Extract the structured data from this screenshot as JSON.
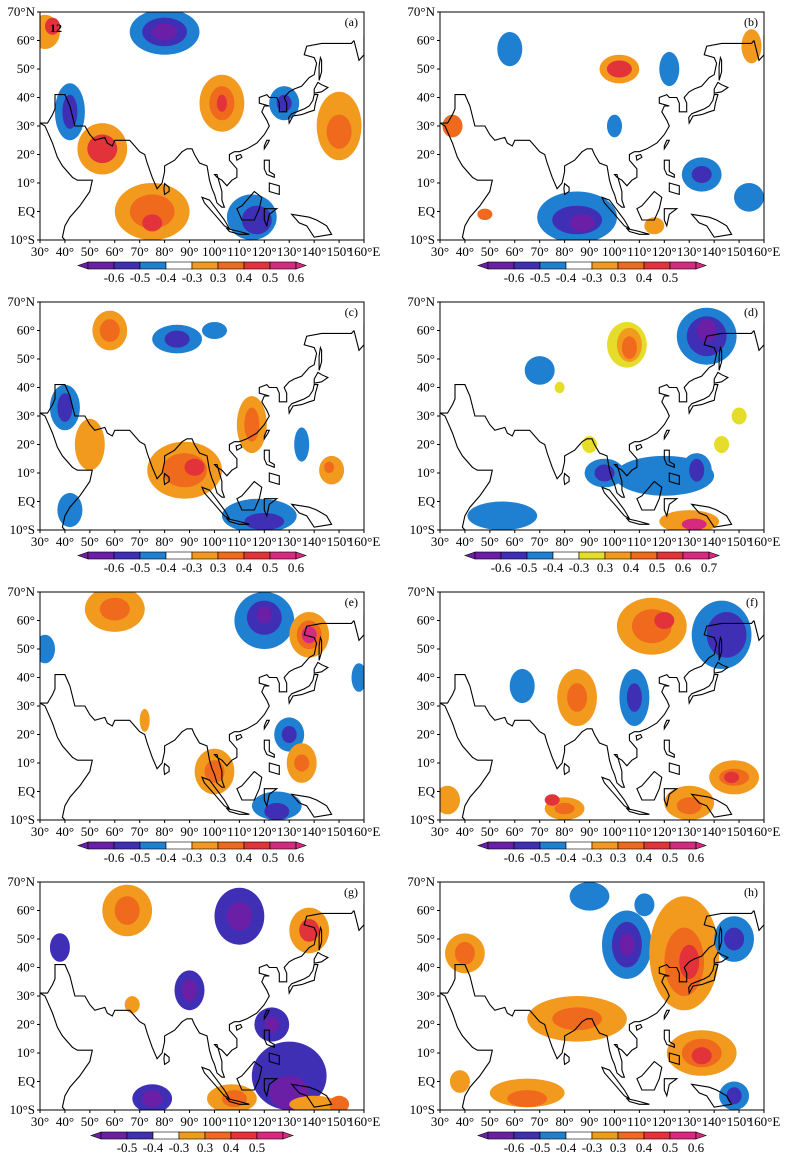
{
  "figure": {
    "lon_ticks": [
      "30°",
      "40°",
      "50°",
      "60°",
      "70°",
      "80°",
      "90°",
      "100°",
      "110°",
      "120°",
      "130°",
      "140°",
      "150°",
      "160°E"
    ],
    "lat_ticks": [
      "70°N",
      "60°",
      "50°",
      "40°",
      "30°",
      "20°",
      "10°",
      "EQ",
      "10°S"
    ],
    "panels": [
      {
        "id": "a",
        "label": "(a)",
        "map_number": "12",
        "colorbar": [
          "-0.6",
          "-0.5",
          "-0.4",
          "-0.3",
          "0.3",
          "0.4",
          "0.5",
          "0.6"
        ],
        "colors": [
          "#6a1fa6",
          "#3f2fb5",
          "#1f7fd0",
          "#ffffff",
          "#f29a1e",
          "#ef6a1c",
          "#e2323a",
          "#d62a80"
        ]
      },
      {
        "id": "b",
        "label": "(b)",
        "map_number": "",
        "colorbar": [
          "-0.6",
          "-0.5",
          "-0.4",
          "-0.3",
          "0.3",
          "0.4",
          "0.5"
        ],
        "colors": [
          "#6a1fa6",
          "#3f2fb5",
          "#1f7fd0",
          "#ffffff",
          "#f29a1e",
          "#ef6a1c",
          "#e2323a",
          "#d62a80"
        ]
      },
      {
        "id": "c",
        "label": "(c)",
        "map_number": "",
        "colorbar": [
          "-0.6",
          "-0.5",
          "-0.4",
          "-0.3",
          "0.3",
          "0.4",
          "0.5",
          "0.6"
        ],
        "colors": [
          "#6a1fa6",
          "#3f2fb5",
          "#1f7fd0",
          "#ffffff",
          "#f29a1e",
          "#ef6a1c",
          "#e2323a",
          "#d62a80"
        ]
      },
      {
        "id": "d",
        "label": "(d)",
        "map_number": "",
        "colorbar": [
          "-0.6",
          "-0.5",
          "-0.4",
          "-0.3",
          "0.3",
          "0.4",
          "0.5",
          "0.6",
          "0.7"
        ],
        "colors": [
          "#6a1fa6",
          "#3f2fb5",
          "#1f7fd0",
          "#ffffff",
          "#e6dc2a",
          "#f29a1e",
          "#ef6a1c",
          "#e2323a",
          "#d62a80"
        ]
      },
      {
        "id": "e",
        "label": "(e)",
        "map_number": "",
        "colorbar": [
          "-0.6",
          "-0.5",
          "-0.4",
          "-0.3",
          "0.3",
          "0.4",
          "0.5",
          "0.6"
        ],
        "colors": [
          "#6a1fa6",
          "#3f2fb5",
          "#1f7fd0",
          "#ffffff",
          "#f29a1e",
          "#ef6a1c",
          "#e2323a",
          "#d62a80"
        ]
      },
      {
        "id": "f",
        "label": "(f)",
        "map_number": "",
        "colorbar": [
          "-0.6",
          "-0.5",
          "-0.4",
          "-0.3",
          "0.3",
          "0.4",
          "0.5",
          "0.6"
        ],
        "colors": [
          "#6a1fa6",
          "#3f2fb5",
          "#1f7fd0",
          "#ffffff",
          "#f29a1e",
          "#ef6a1c",
          "#e2323a",
          "#d62a80"
        ]
      },
      {
        "id": "g",
        "label": "(g)",
        "map_number": "",
        "colorbar": [
          "-0.5",
          "-0.4",
          "-0.3",
          "0.3",
          "0.4",
          "0.5"
        ],
        "colors": [
          "#6a1fa6",
          "#3f2fb5",
          "#ffffff",
          "#f29a1e",
          "#ef6a1c",
          "#e2323a",
          "#d62a80"
        ]
      },
      {
        "id": "h",
        "label": "(h)",
        "map_number": "",
        "colorbar": [
          "-0.6",
          "-0.5",
          "-0.4",
          "-0.3",
          "0.3",
          "0.4",
          "0.5",
          "0.6"
        ],
        "colors": [
          "#6a1fa6",
          "#3f2fb5",
          "#1f7fd0",
          "#ffffff",
          "#f29a1e",
          "#ef6a1c",
          "#e2323a",
          "#d62a80"
        ]
      }
    ]
  }
}
